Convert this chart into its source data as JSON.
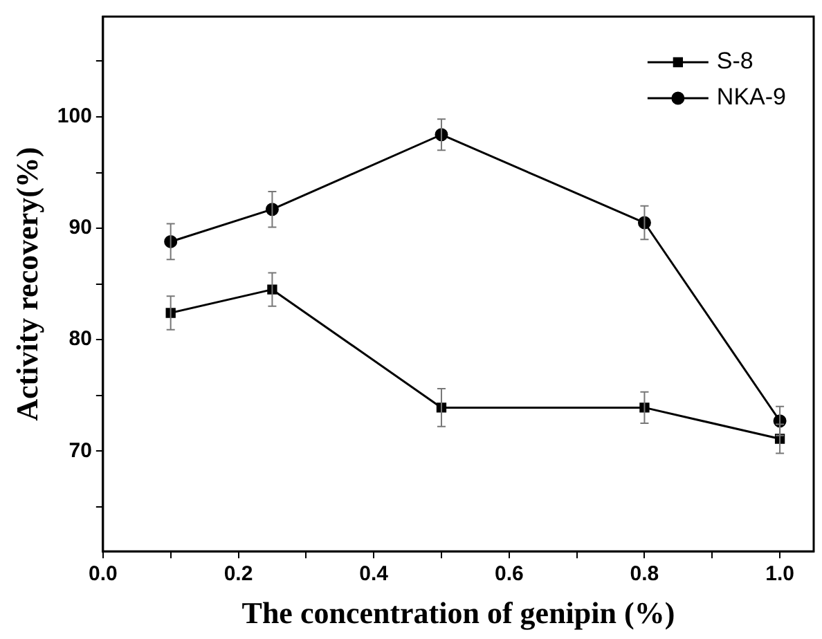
{
  "chart_data": {
    "type": "line",
    "xlabel": "The concentration of genipin (%)",
    "ylabel": "Activity recovery(%)",
    "x": [
      0.1,
      0.25,
      0.5,
      0.8,
      1.0
    ],
    "series": [
      {
        "name": "S-8",
        "color": "#000000",
        "marker": "square",
        "values": [
          82.4,
          84.5,
          73.9,
          73.9,
          71.1
        ],
        "errors": [
          1.5,
          1.5,
          1.7,
          1.4,
          1.3
        ]
      },
      {
        "name": "NKA-9",
        "color": "#000000",
        "marker": "circle",
        "values": [
          88.8,
          91.7,
          98.4,
          90.5,
          72.7
        ],
        "errors": [
          1.6,
          1.6,
          1.4,
          1.5,
          1.3
        ]
      }
    ],
    "xlim": [
      0,
      1.05
    ],
    "xticks": [
      {
        "value": 0,
        "label": "0.0"
      },
      {
        "value": 0.1,
        "label": null
      },
      0.2,
      {
        "value": 0.3,
        "label": null
      },
      0.4,
      {
        "value": 0.5,
        "label": null
      },
      0.6,
      {
        "value": 0.7,
        "label": null
      },
      0.8,
      {
        "value": 0.9,
        "label": null
      },
      {
        "value": 1,
        "label": "1.0"
      }
    ],
    "ylim": [
      61,
      109
    ],
    "yticks": [
      {
        "value": 65,
        "label": null
      },
      70,
      {
        "value": 75,
        "label": null
      },
      80,
      {
        "value": 85,
        "label": null
      },
      90,
      {
        "value": 95,
        "label": null
      },
      100,
      {
        "value": 105,
        "label": null
      }
    ],
    "legend": "top right",
    "line_style": "solid"
  }
}
